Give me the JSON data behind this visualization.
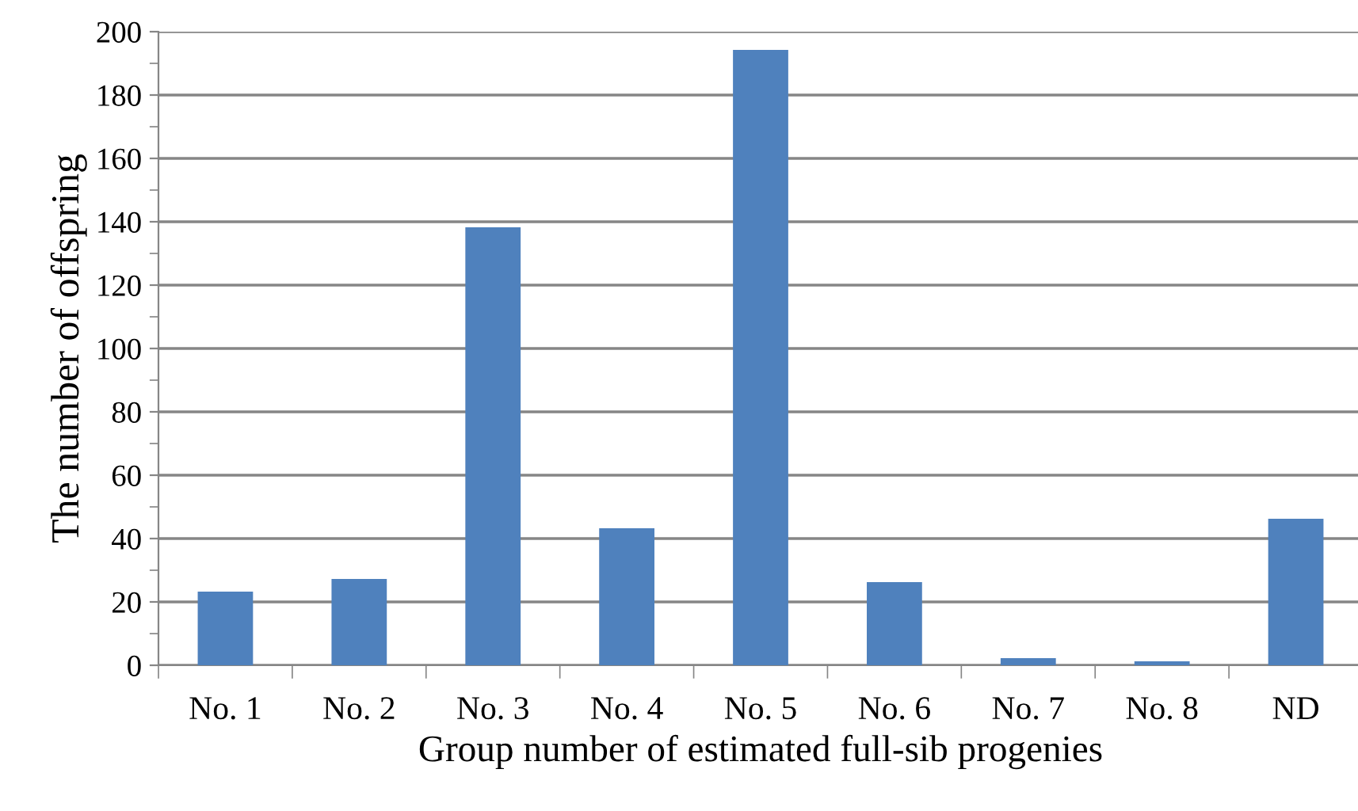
{
  "chart_data": {
    "type": "bar",
    "xlabel": "Group number of estimated full-sib progenies",
    "ylabel": "The number of offspring",
    "categories": [
      "No. 1",
      "No. 2",
      "No. 3",
      "No. 4",
      "No. 5",
      "No. 6",
      "No. 7",
      "No. 8",
      "ND"
    ],
    "values": [
      23,
      27,
      138,
      43,
      194,
      26,
      2,
      1,
      46
    ],
    "color": "#4f81bd",
    "ylim": [
      0,
      200
    ],
    "yticks": [
      0,
      20,
      40,
      60,
      80,
      100,
      120,
      140,
      160,
      180,
      200
    ],
    "grid": "y"
  }
}
